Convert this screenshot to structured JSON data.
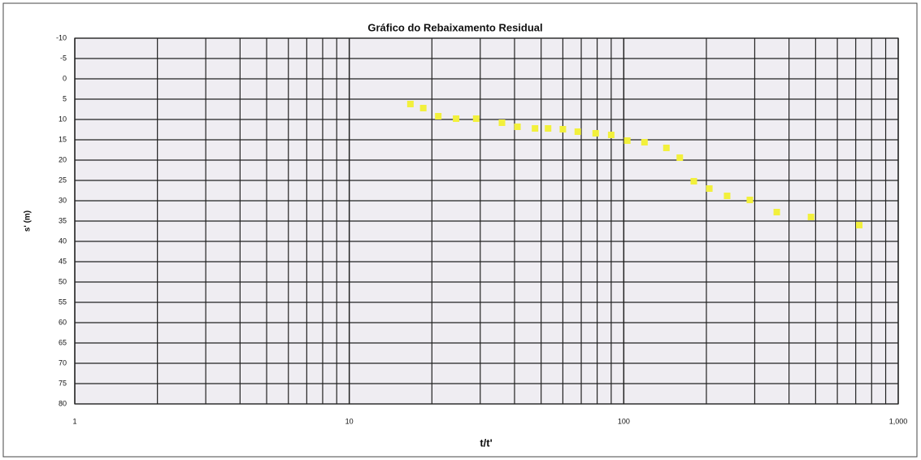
{
  "chart_data": {
    "type": "scatter",
    "title": "Gráfico do Rebaixamento Residual",
    "x_label": "t/t'",
    "y_label": "s' (m)",
    "x": [
      16.7,
      18.6,
      21.1,
      24.5,
      29,
      36,
      41,
      47.5,
      53,
      60,
      68,
      79,
      90,
      103,
      119,
      143,
      160,
      180,
      205,
      238,
      288,
      361,
      481,
      721
    ],
    "series": [
      {
        "name": "s'",
        "color": "#f2f03c",
        "values": [
          6.2,
          7.2,
          9.2,
          9.8,
          9.8,
          10.8,
          11.8,
          12.2,
          12.2,
          12.4,
          13,
          13.4,
          13.8,
          15.2,
          15.6,
          17,
          19.4,
          25.2,
          27,
          28.8,
          29.8,
          32.8,
          34,
          36
        ]
      }
    ],
    "xlim": [
      1,
      1000
    ],
    "xticks": [
      1,
      10,
      100,
      {
        "value": 1000,
        "label": "1,000"
      }
    ],
    "ylim": [
      -10,
      80
    ],
    "yticks": [
      -10,
      -5,
      0,
      5,
      10,
      15,
      20,
      25,
      30,
      35,
      40,
      45,
      50,
      55,
      60,
      65,
      70,
      75,
      80
    ],
    "x_log": true,
    "y_inverted": true,
    "grid": true
  }
}
